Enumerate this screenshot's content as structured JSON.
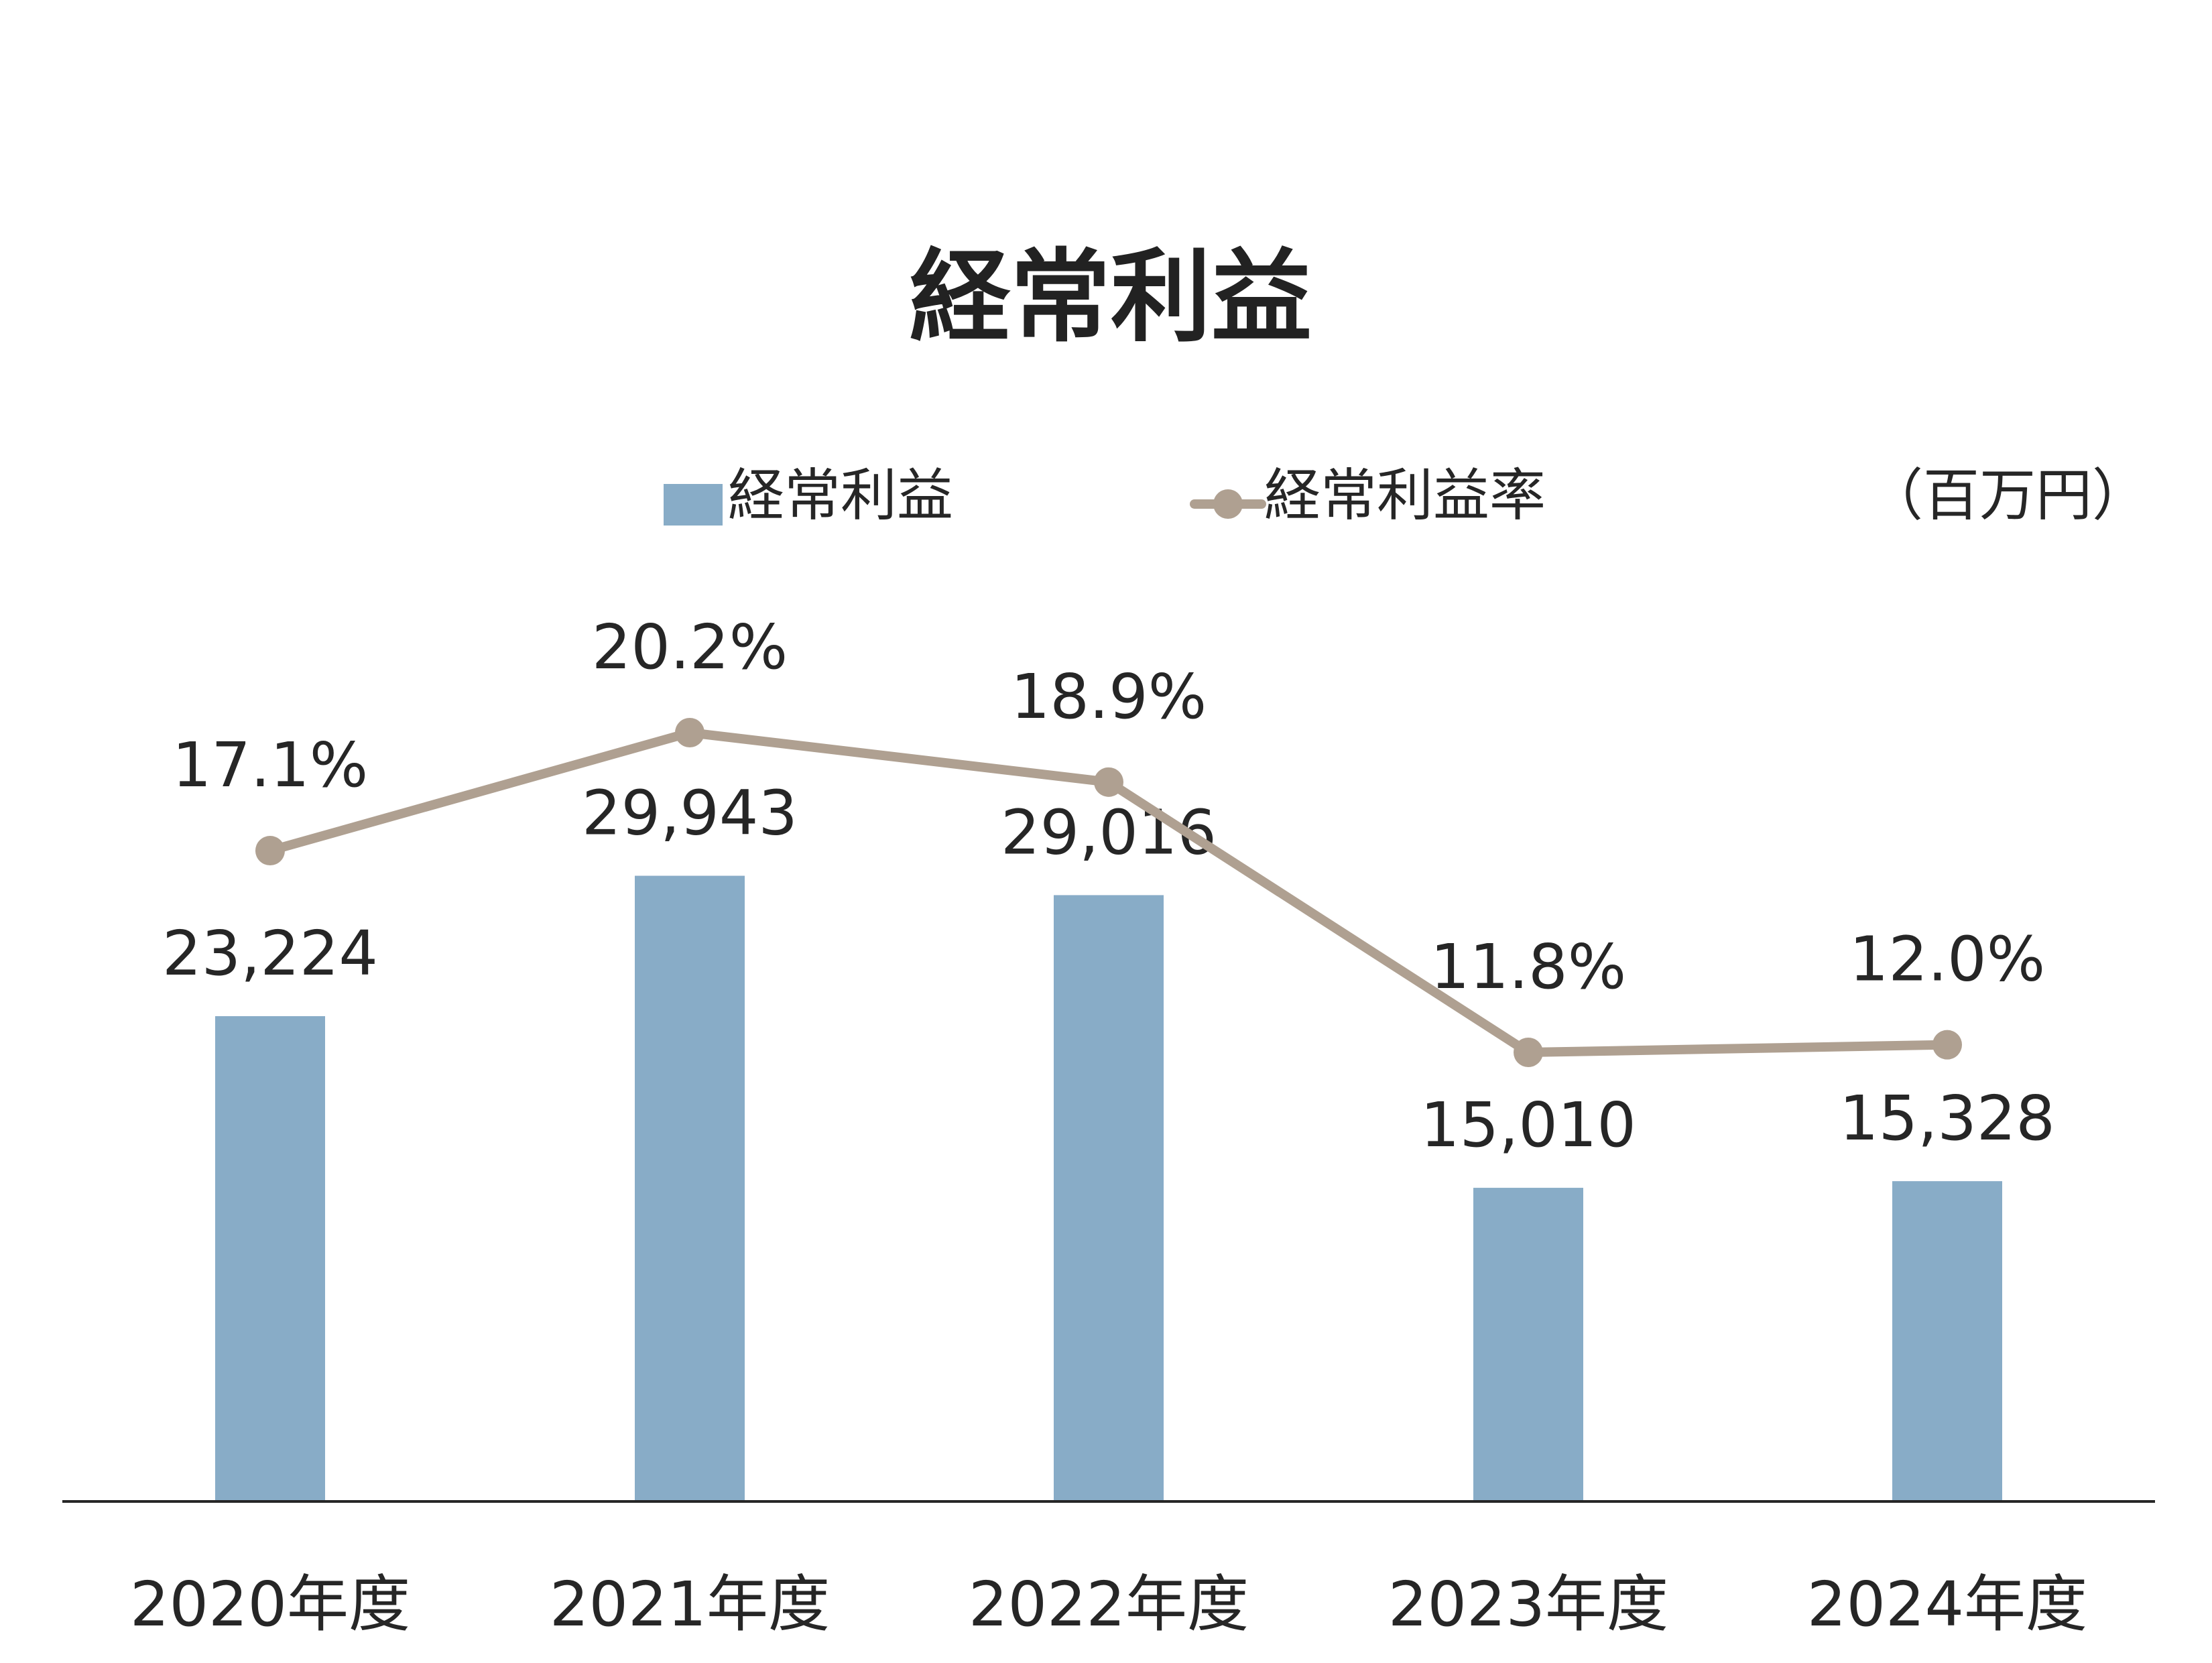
{
  "chart_data": {
    "type": "bar",
    "title": "経常利益",
    "unit": "（百万円）",
    "categories": [
      "2020年度",
      "2021年度",
      "2022年度",
      "2023年度",
      "2024年度"
    ],
    "series": [
      {
        "name": "経常利益",
        "kind": "bar",
        "values": [
          23224,
          29943,
          29016,
          15010,
          15328
        ],
        "labels": [
          "23,224",
          "29,943",
          "29,016",
          "15,010",
          "15,328"
        ],
        "color": "#88ACC7"
      },
      {
        "name": "経常利益率",
        "kind": "line",
        "values": [
          17.1,
          20.2,
          18.9,
          11.8,
          12.0
        ],
        "labels": [
          "17.1%",
          "20.2%",
          "18.9%",
          "11.8%",
          "12.0%"
        ],
        "color": "#AFA091"
      }
    ],
    "legend_position": "top",
    "grid": false
  }
}
